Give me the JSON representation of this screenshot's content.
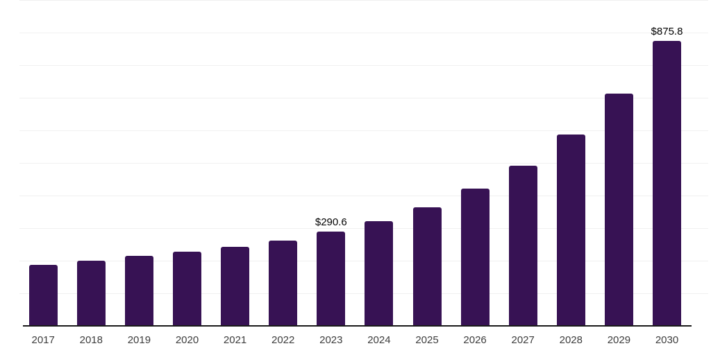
{
  "chart_data": {
    "type": "bar",
    "title": "",
    "xlabel": "",
    "ylabel": "",
    "categories": [
      "2017",
      "2018",
      "2019",
      "2020",
      "2021",
      "2022",
      "2023",
      "2024",
      "2025",
      "2026",
      "2027",
      "2028",
      "2029",
      "2030"
    ],
    "values": [
      190.4,
      202.7,
      217.0,
      230.1,
      245.6,
      263.2,
      290.6,
      322.6,
      366.9,
      422.5,
      493.8,
      590.2,
      714.2,
      875.8
    ],
    "data_labels": {
      "2023": "$290.6",
      "2030": "$875.8"
    },
    "ylim": [
      0,
      1000
    ],
    "grid_interval": 100,
    "grid": "on",
    "legend": "none",
    "y_axis_tick_labels": "none",
    "colors": {
      "bar": "#371254",
      "gridline": "#f0f0f0",
      "axis_line": "#1a1a1a",
      "tick_label": "#3d3d3d",
      "data_label": "#000000",
      "background": "#ffffff"
    }
  }
}
